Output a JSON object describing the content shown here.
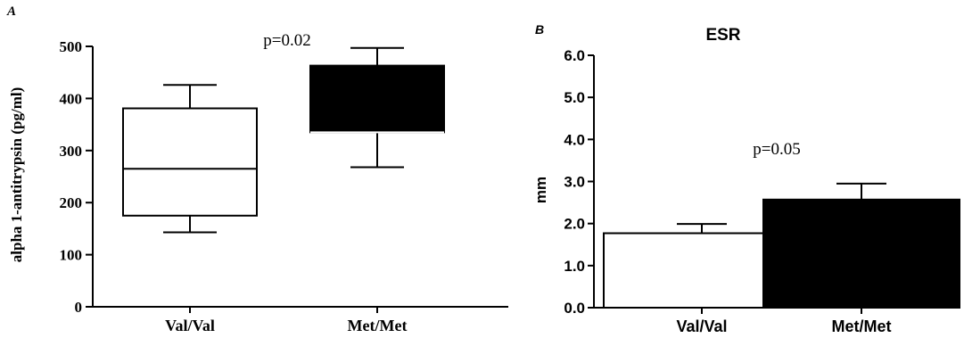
{
  "chart_data": [
    {
      "type": "box",
      "panel_label": "A",
      "title": "",
      "ylabel": "alpha 1-antitrypsin (pg/ml)",
      "xlabel": "",
      "ylim": [
        0,
        500
      ],
      "yticks": [
        "0",
        "100",
        "200",
        "300",
        "400",
        "500"
      ],
      "ytick_values": [
        0,
        100,
        200,
        300,
        400,
        500
      ],
      "categories": [
        "Val/Val",
        "Met/Met"
      ],
      "boxes": [
        {
          "name": "Val/Val",
          "min": 143,
          "q1": 175,
          "median": 265,
          "q3": 381,
          "max": 426,
          "fill": "#ffffff"
        },
        {
          "name": "Met/Met",
          "min": 268,
          "q1": 335,
          "median": 335,
          "q3": 463,
          "max": 497,
          "fill": "#000000"
        }
      ],
      "annotation": "p=0.02"
    },
    {
      "type": "bar",
      "panel_label": "B",
      "title": "ESR",
      "ylabel": "mm",
      "xlabel": "",
      "ylim": [
        0,
        6
      ],
      "yticks": [
        "0.0",
        "1.0",
        "2.0",
        "3.0",
        "4.0",
        "5.0",
        "6.0"
      ],
      "ytick_values": [
        0,
        1,
        2,
        3,
        4,
        5,
        6
      ],
      "categories": [
        "Val/Val",
        "Met/Met"
      ],
      "values": [
        1.77,
        2.57
      ],
      "errors": [
        0.22,
        0.38
      ],
      "fills": [
        "#ffffff",
        "#000000"
      ],
      "annotation": "p=0.05"
    }
  ]
}
